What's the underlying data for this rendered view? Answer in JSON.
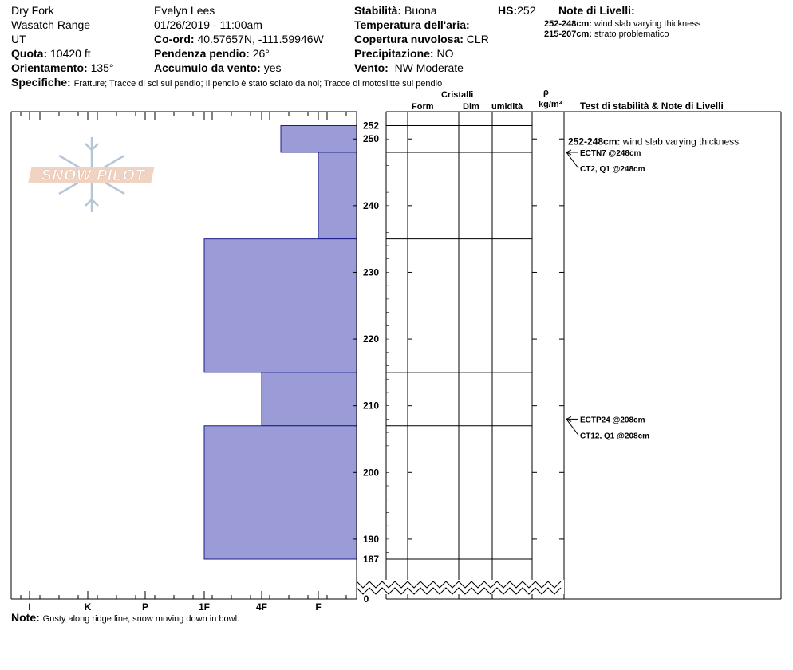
{
  "header": {
    "location": "Dry Fork",
    "range": "Wasatch Range",
    "state": "UT",
    "elevation_label": "Quota:",
    "elevation": "10420 ft",
    "aspect_label": "Orientamento:",
    "aspect": "135°",
    "observer": "Evelyn Lees",
    "datetime": "01/26/2019 - 11:00am",
    "coord_label": "Co-ord:",
    "coord": "40.57657N, -111.59946W",
    "slope_label": "Pendenza pendio:",
    "slope": "26°",
    "wind_loading_label": "Accumulo da vento:",
    "wind_loading": "yes",
    "stability_label": "Stabilità:",
    "stability": "Buona",
    "hs_label": "HS:",
    "hs": "252",
    "air_temp_label": "Temperatura dell'aria:",
    "air_temp": "",
    "sky_label": "Copertura nuvolosa:",
    "sky": "CLR",
    "precip_label": "Precipitazione:",
    "precip": "NO",
    "wind_label": "Vento:",
    "wind": "NW Moderate",
    "layer_notes_label": "Note di Livelli:",
    "layer_notes": [
      {
        "range": "252-248cm:",
        "text": "wind slab varying thickness"
      },
      {
        "range": "215-207cm:",
        "text": "strato problematico"
      }
    ],
    "specifics_label": "Specifiche:",
    "specifics": "Fratture;  Tracce di sci sul pendio;  Il pendio è stato sciato da noi;  Tracce di motoslitte sul pendio"
  },
  "columns": {
    "crystals": "Cristalli",
    "form": "Form",
    "dim": "Dim",
    "moisture": "umidità",
    "rho": "ρ",
    "density_unit": "kg/m³",
    "tests": "Test di stabilità & Note di Livelli"
  },
  "logo": {
    "text": "SNOW PILOT"
  },
  "footer": {
    "note_label": "Note:",
    "note": "Gusty along ridge line, snow moving down in bowl."
  },
  "chart_data": {
    "type": "bar",
    "title": "",
    "x_axis": {
      "categories": [
        "I",
        "K",
        "P",
        "1F",
        "4F",
        "F"
      ],
      "reversed": true
    },
    "y_axis": {
      "unit": "cm",
      "range": [
        187,
        252
      ],
      "ticks": [
        250,
        240,
        230,
        220,
        210,
        200,
        190
      ],
      "labels": [
        252,
        250,
        240,
        230,
        220,
        210,
        200,
        190,
        187,
        0
      ],
      "break_below": 187
    },
    "layers": [
      {
        "top": 252,
        "bottom": 248,
        "hardness": "4F-"
      },
      {
        "top": 248,
        "bottom": 235,
        "hardness": "F"
      },
      {
        "top": 235,
        "bottom": 215,
        "hardness": "1F"
      },
      {
        "top": 215,
        "bottom": 207,
        "hardness": "4F"
      },
      {
        "top": 207,
        "bottom": 187,
        "hardness": "1F"
      }
    ],
    "layer_boundaries": [
      252,
      248,
      235,
      215,
      207,
      187
    ],
    "bar_color": "#9b9bd7",
    "annotations": [
      {
        "depth": 252,
        "note": "252-248cm:",
        "text": "wind slab varying thickness"
      },
      {
        "depth": 248,
        "test": "ECTN7 @248cm"
      },
      {
        "depth": 248,
        "test": "CT2, Q1 @248cm"
      },
      {
        "depth": 208,
        "test": "ECTP24 @208cm"
      },
      {
        "depth": 208,
        "test": "CT12, Q1 @208cm"
      }
    ]
  }
}
